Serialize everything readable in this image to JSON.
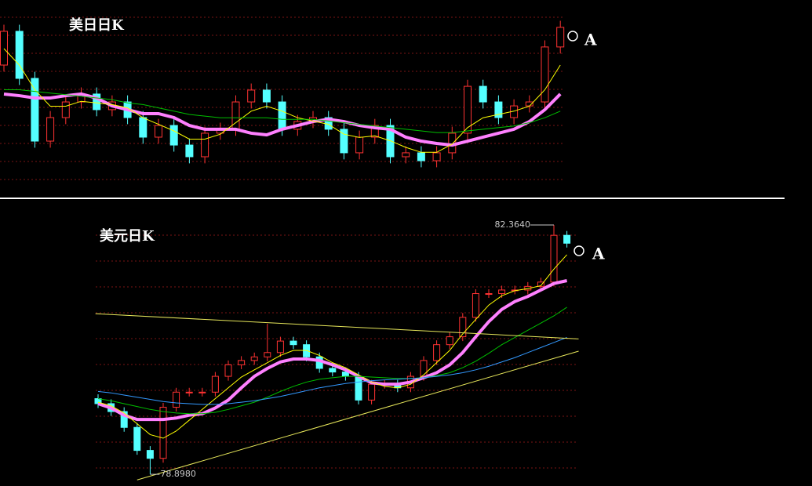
{
  "chart_data": [
    {
      "type": "candlestick",
      "title": "美日日K",
      "ylim": [
        0,
        100
      ],
      "open": [
        70,
        90.5,
        61.9,
        23.8,
        38.1,
        47.6,
        52.4,
        42.9,
        47.6,
        38.1,
        26.2,
        33.3,
        21.4,
        14.3,
        28.6,
        31,
        47.6,
        54.8,
        47.6,
        31,
        35.7,
        38.1,
        31,
        16.7,
        26.2,
        33.3,
        14.3,
        16.7,
        11.9,
        16.7,
        28.6,
        57.1,
        47.6,
        38.1,
        45.2,
        47.6,
        81
      ],
      "high": [
        94.5,
        94.5,
        65.9,
        42.1,
        51.6,
        56.4,
        56.4,
        51.6,
        51.6,
        42.1,
        37.3,
        37.3,
        25.4,
        32.6,
        35,
        51.6,
        58.8,
        58.8,
        51.6,
        39.7,
        42.1,
        42.1,
        35,
        30.2,
        37.3,
        37.3,
        20.7,
        20.7,
        20.7,
        32.6,
        61.1,
        61.1,
        51.6,
        49.2,
        51.6,
        85,
        96.9
      ],
      "low": [
        66,
        57.9,
        19.8,
        19.8,
        34.1,
        43.6,
        38.9,
        38.9,
        34.1,
        22.2,
        22.2,
        17.4,
        10.3,
        10.3,
        24.6,
        27,
        43.6,
        43.6,
        27,
        27,
        31.7,
        27,
        12.7,
        12.7,
        22.2,
        10.3,
        10.3,
        7.9,
        7.9,
        12.7,
        24.6,
        43.6,
        34.1,
        34.1,
        41.2,
        43.6,
        77
      ],
      "close": [
        90.5,
        61.9,
        23.8,
        38.1,
        47.6,
        52.4,
        42.9,
        47.6,
        38.1,
        26.2,
        33.3,
        21.4,
        14.3,
        28.6,
        31,
        47.6,
        54.8,
        47.6,
        31,
        35.7,
        38.1,
        31,
        16.7,
        26.2,
        33.3,
        14.3,
        16.7,
        11.9,
        16.7,
        28.6,
        57.1,
        47.6,
        38.1,
        45.2,
        47.6,
        81,
        92.9
      ],
      "up_color": "#ff3232",
      "down_color": "#54ffff",
      "series": [
        {
          "color": "#ff80ff",
          "values": [
            52.4,
            51.4,
            50,
            50,
            51.4,
            52.4,
            50,
            45.2,
            42.9,
            40.5,
            40.5,
            38.1,
            33.3,
            31,
            31,
            31,
            28.6,
            27.6,
            31,
            33.3,
            35.7,
            37.1,
            35.7,
            33.3,
            31.9,
            31,
            26.2,
            23.8,
            22.4,
            21.4,
            23.8,
            26.2,
            28.6,
            31,
            35.7,
            42.9,
            52.4
          ]
        },
        {
          "color": "#ffff00",
          "values": [
            80,
            70,
            55,
            45,
            45,
            48,
            47,
            46,
            44,
            38,
            34,
            30,
            25,
            25,
            28,
            35,
            42,
            45,
            42,
            38,
            36,
            34,
            28,
            26,
            27,
            24,
            20,
            17,
            17,
            22,
            32,
            38,
            40,
            42,
            45,
            55,
            70
          ]
        },
        {
          "color": "#00c000",
          "values": [
            55,
            55,
            54,
            53,
            52,
            51,
            50,
            49,
            47,
            46,
            44,
            42,
            40,
            39,
            38,
            38,
            38,
            38,
            37,
            37,
            37,
            36,
            35,
            34,
            33,
            32,
            31,
            30,
            29,
            29,
            30,
            31,
            32,
            33,
            35,
            38,
            42
          ]
        }
      ],
      "annotations": [
        {
          "text": "A"
        }
      ],
      "trendlines": [],
      "price_labels": []
    },
    {
      "type": "candlestick",
      "title": "美元日K",
      "ylim": [
        78.79,
        82.44
      ],
      "open": [
        79.95,
        79.88,
        79.77,
        79.55,
        79.23,
        79.12,
        79.83,
        80.04,
        80.04,
        80.04,
        80.26,
        80.42,
        80.48,
        80.53,
        80.59,
        80.75,
        80.7,
        80.53,
        80.37,
        80.32,
        80.26,
        79.93,
        80.15,
        80.15,
        80.1,
        80.26,
        80.48,
        80.7,
        80.81,
        81.08,
        81.41,
        81.41,
        81.46,
        81.46,
        81.51,
        81.57,
        82.22
      ],
      "high": [
        80.01,
        79.94,
        79.83,
        79.61,
        79.29,
        79.89,
        80.1,
        80.1,
        80.1,
        80.32,
        80.48,
        80.54,
        80.59,
        80.99,
        80.81,
        80.81,
        80.76,
        80.59,
        80.43,
        80.38,
        80.32,
        80.21,
        80.21,
        80.21,
        80.32,
        80.54,
        80.76,
        80.87,
        81.14,
        81.47,
        81.47,
        81.52,
        81.52,
        81.57,
        81.63,
        82.364,
        82.28
      ],
      "low": [
        79.82,
        79.71,
        79.49,
        79.17,
        78.898,
        79.06,
        79.77,
        79.98,
        79.98,
        79.98,
        80.2,
        80.36,
        80.42,
        80.47,
        80.53,
        80.64,
        80.47,
        80.31,
        80.26,
        80.2,
        79.87,
        79.87,
        80.09,
        80.04,
        80.04,
        80.2,
        80.42,
        80.64,
        80.75,
        81.02,
        81.35,
        81.35,
        81.4,
        81.4,
        81.45,
        81.51,
        82.05
      ],
      "close": [
        79.88,
        79.77,
        79.55,
        79.23,
        79.12,
        79.83,
        80.04,
        80.04,
        80.04,
        80.26,
        80.42,
        80.48,
        80.53,
        80.59,
        80.75,
        80.7,
        80.53,
        80.37,
        80.32,
        80.26,
        79.93,
        80.15,
        80.15,
        80.1,
        80.26,
        80.48,
        80.7,
        80.81,
        81.08,
        81.41,
        81.41,
        81.46,
        81.46,
        81.51,
        81.57,
        82.22,
        82.11
      ],
      "up_color": "#ff3232",
      "down_color": "#54ffff",
      "series": [
        {
          "color": "#ff80ff",
          "values": [
            79.88,
            79.82,
            79.72,
            79.66,
            79.66,
            79.66,
            79.68,
            79.72,
            79.74,
            79.82,
            79.93,
            80.1,
            80.26,
            80.37,
            80.46,
            80.5,
            80.5,
            80.48,
            80.42,
            80.35,
            80.26,
            80.17,
            80.15,
            80.15,
            80.18,
            80.24,
            80.31,
            80.42,
            80.59,
            80.81,
            81.02,
            81.19,
            81.3,
            81.37,
            81.46,
            81.55,
            81.59
          ]
        },
        {
          "color": "#ffff00",
          "values": [
            79.9,
            79.85,
            79.75,
            79.6,
            79.45,
            79.4,
            79.5,
            79.65,
            79.8,
            79.95,
            80.1,
            80.25,
            80.35,
            80.45,
            80.55,
            80.62,
            80.62,
            80.55,
            80.45,
            80.38,
            80.28,
            80.18,
            80.12,
            80.1,
            80.15,
            80.28,
            80.45,
            80.62,
            80.85,
            81.05,
            81.25,
            81.38,
            81.45,
            81.48,
            81.52,
            81.75,
            81.95
          ]
        },
        {
          "color": "#00c000",
          "values": [
            79.95,
            79.92,
            79.88,
            79.84,
            79.8,
            79.77,
            79.75,
            79.74,
            79.74,
            79.76,
            79.8,
            79.85,
            79.9,
            79.97,
            80.05,
            80.12,
            80.18,
            80.22,
            80.24,
            80.26,
            80.26,
            80.25,
            80.24,
            80.23,
            80.23,
            80.24,
            80.27,
            80.31,
            80.38,
            80.47,
            80.58,
            80.7,
            80.8,
            80.9,
            81.0,
            81.1,
            81.22
          ]
        },
        {
          "color": "#3399ff",
          "values": [
            80.05,
            80.03,
            80.0,
            79.97,
            79.94,
            79.91,
            79.89,
            79.88,
            79.87,
            79.87,
            79.88,
            79.9,
            79.92,
            79.95,
            79.98,
            80.02,
            80.06,
            80.1,
            80.13,
            80.16,
            80.18,
            80.2,
            80.21,
            80.22,
            80.23,
            80.24,
            80.26,
            80.28,
            80.31,
            80.35,
            80.4,
            80.46,
            80.52,
            80.59,
            80.66,
            80.73,
            80.8
          ]
        }
      ],
      "annotations": [
        {
          "text": "A"
        }
      ],
      "trendlines": [
        {
          "color": "#e6e65a",
          "x": [
            -0.2,
            36.9
          ],
          "y": [
            81.13,
            80.78
          ]
        },
        {
          "color": "#e6e65a",
          "x": [
            3,
            36.9
          ],
          "y": [
            78.82,
            80.61
          ]
        }
      ],
      "price_labels": [
        {
          "label": "82.3640",
          "value": 82.364
        },
        {
          "label": "78.8980",
          "value": 78.898
        }
      ]
    }
  ]
}
